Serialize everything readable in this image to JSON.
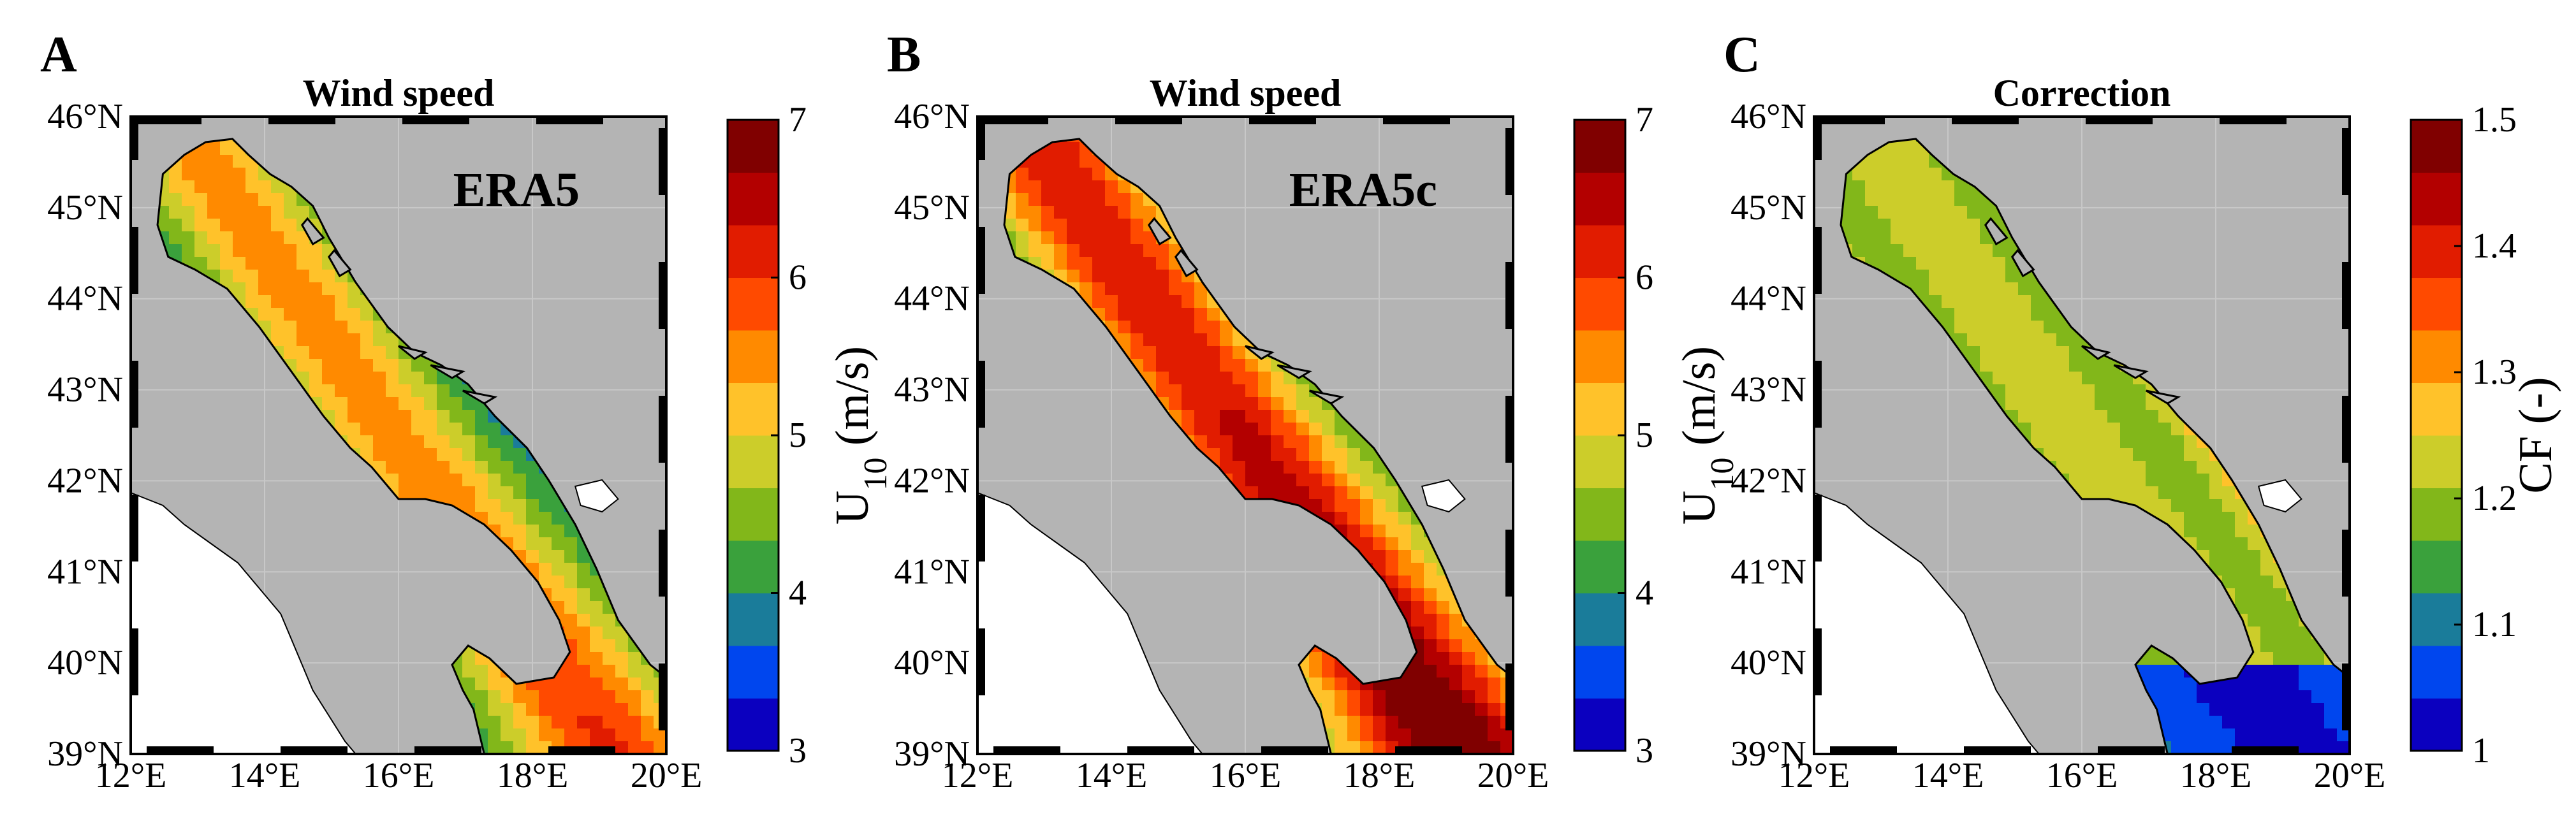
{
  "lat_ticks": [
    "46°N",
    "45°N",
    "44°N",
    "43°N",
    "42°N",
    "41°N",
    "40°N",
    "39°N"
  ],
  "lon_ticks": [
    "12°E",
    "14°E",
    "16°E",
    "18°E",
    "20°E"
  ],
  "colors": {
    "land": "#b4b4b4",
    "outside": "#ffffff",
    "coast": "#000000",
    "grid": "#c8c8c8"
  },
  "panels": [
    {
      "letter": "A",
      "title": "Wind speed",
      "label": "ERA5",
      "field": "era5",
      "colorbar": {
        "label_main": "U",
        "label_sub": "10",
        "label_unit": " (m/s)",
        "ticks": [
          "3",
          "4",
          "5",
          "6",
          "7"
        ],
        "range": [
          3,
          7
        ],
        "levels": [
          "#0b00bf",
          "#0046ee",
          "#1a7c9a",
          "#3aa13c",
          "#82b71a",
          "#cccd2a",
          "#ffc22a",
          "#ff8a00",
          "#ff4a00",
          "#e11c00",
          "#b30000",
          "#800000"
        ]
      }
    },
    {
      "letter": "B",
      "title": "Wind speed",
      "label": "ERA5c",
      "field": "era5c",
      "colorbar": {
        "label_main": "U",
        "label_sub": "10",
        "label_unit": " (m/s)",
        "ticks": [
          "3",
          "4",
          "5",
          "6",
          "7"
        ],
        "range": [
          3,
          7
        ],
        "levels": [
          "#0b00bf",
          "#0046ee",
          "#1a7c9a",
          "#3aa13c",
          "#82b71a",
          "#cccd2a",
          "#ffc22a",
          "#ff8a00",
          "#ff4a00",
          "#e11c00",
          "#b30000",
          "#800000"
        ]
      }
    },
    {
      "letter": "C",
      "title": "Correction",
      "label": "",
      "field": "cf",
      "colorbar": {
        "label_main": "CF (-)",
        "label_sub": "",
        "label_unit": "",
        "ticks": [
          "1",
          "1.1",
          "1.2",
          "1.3",
          "1.4",
          "1.5"
        ],
        "range": [
          1,
          1.5
        ],
        "levels": [
          "#0b00bf",
          "#0046ee",
          "#1a7c9a",
          "#3aa13c",
          "#82b71a",
          "#cccd2a",
          "#ffc22a",
          "#ff8a00",
          "#ff4a00",
          "#e11c00",
          "#b30000",
          "#800000"
        ]
      }
    }
  ]
}
